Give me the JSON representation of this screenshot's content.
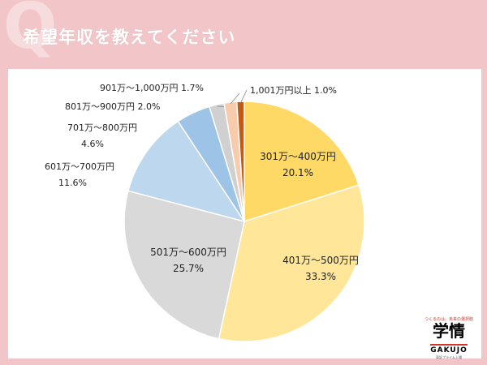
{
  "header": {
    "q_letter": "Q",
    "title": "希望年収を教えてください"
  },
  "chart_data": {
    "type": "pie",
    "title": "",
    "slices": [
      {
        "label": "301万〜400万円",
        "value": 20.1,
        "display": "20.1%",
        "color": "#fed966"
      },
      {
        "label": "401万〜500万円",
        "value": 33.3,
        "display": "33.3%",
        "color": "#ffe699"
      },
      {
        "label": "501万〜600万円",
        "value": 25.7,
        "display": "25.7%",
        "color": "#d9d9d9"
      },
      {
        "label": "601万〜700万円",
        "value": 11.6,
        "display": "11.6%",
        "color": "#bdd7ee"
      },
      {
        "label": "701万〜800万円",
        "value": 4.6,
        "display": "4.6%",
        "color": "#9dc3e6"
      },
      {
        "label": "801万〜900万円",
        "value": 2.0,
        "display": "2.0%",
        "color": "#d0d0d0"
      },
      {
        "label": "901万〜1,000万円",
        "value": 1.7,
        "display": "1.7%",
        "color": "#f8cbad"
      },
      {
        "label": "1,001万円以上",
        "value": 1.0,
        "display": "1.0%",
        "color": "#c55a11"
      }
    ],
    "start_angle_deg": 0,
    "direction": "clockwise"
  },
  "brand": {
    "tagline": "つくるのは、未来の選択肢",
    "logo_text": "学情",
    "name": "GAKUJO",
    "sub": "東証プライム上場"
  }
}
